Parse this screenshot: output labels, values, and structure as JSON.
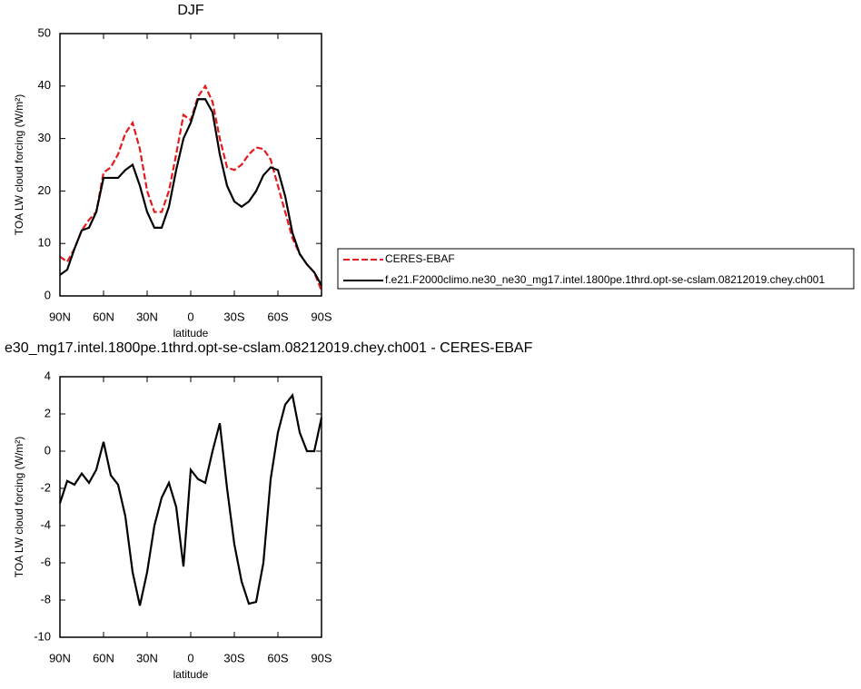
{
  "chart_data": [
    {
      "type": "line",
      "title": "DJF",
      "xlabel": "latitude",
      "ylabel": "TOA LW cloud forcing (W/m²)",
      "x": [
        90,
        85,
        80,
        75,
        70,
        65,
        60,
        55,
        50,
        45,
        40,
        35,
        30,
        25,
        20,
        15,
        10,
        5,
        0,
        -5,
        -10,
        -15,
        -20,
        -25,
        -30,
        -35,
        -40,
        -45,
        -50,
        -55,
        -60,
        -65,
        -70,
        -75,
        -80,
        -85,
        -90
      ],
      "series": [
        {
          "name": "CERES-EBAF",
          "color": "#e41a1c",
          "dash": "dashed",
          "values": [
            7.5,
            6.5,
            9,
            12.5,
            14.5,
            16,
            23.5,
            24.5,
            27,
            31,
            33,
            28,
            20,
            16,
            16,
            20,
            27,
            34.5,
            33.5,
            38,
            40,
            37,
            30,
            24.5,
            24,
            25,
            27,
            28.3,
            28,
            26,
            21,
            16,
            11,
            8,
            6,
            4.5,
            1
          ]
        },
        {
          "name": "f.e21.F2000climo.ne30_ne30_mg17.intel.1800pe.1thrd.opt-se-cslam.08212019.chey.ch001",
          "color": "#000000",
          "dash": "solid",
          "values": [
            4,
            5,
            9,
            12.5,
            13,
            16,
            22.5,
            22.5,
            22.5,
            24,
            25,
            21,
            16,
            13,
            13,
            17,
            24,
            30,
            33,
            37.5,
            37.5,
            35,
            27,
            21,
            18,
            17,
            18,
            20,
            23,
            24.5,
            24,
            19,
            12,
            8,
            6,
            4.5,
            2
          ]
        }
      ],
      "xlim": [
        90,
        -90
      ],
      "xticks": [
        {
          "value": 90,
          "label": "90N"
        },
        {
          "value": 60,
          "label": "60N"
        },
        {
          "value": 30,
          "label": "30N"
        },
        0,
        {
          "value": -30,
          "label": "30S"
        },
        {
          "value": -60,
          "label": "60S"
        },
        {
          "value": -90,
          "label": "90S"
        }
      ],
      "ylim": [
        0,
        50
      ],
      "yticks": [
        0,
        10,
        20,
        30,
        40,
        50
      ],
      "legend": "right"
    },
    {
      "type": "line",
      "title": "e30_mg17.intel.1800pe.1thrd.opt-se-cslam.08212019.chey.ch001 - CERES-EBAF",
      "xlabel": "latitude",
      "ylabel": "TOA LW cloud forcing (W/m²)",
      "x": [
        90,
        85,
        80,
        75,
        70,
        65,
        60,
        55,
        50,
        45,
        40,
        35,
        30,
        25,
        20,
        15,
        10,
        5,
        0,
        -5,
        -10,
        -15,
        -20,
        -25,
        -30,
        -35,
        -40,
        -45,
        -50,
        -55,
        -60,
        -65,
        -70,
        -75,
        -80,
        -85,
        -90
      ],
      "values": [
        -2.8,
        -1.6,
        -1.8,
        -1.2,
        -1.7,
        -1,
        0.5,
        -1.3,
        -1.8,
        -3.5,
        -6.5,
        -8.3,
        -6.5,
        -4,
        -2.5,
        -1.7,
        -3,
        -6.2,
        -1,
        -1.5,
        -1.7,
        0,
        1.5,
        -2,
        -5,
        -7,
        -8.2,
        -8.1,
        -6,
        -1.5,
        1,
        2.5,
        3,
        1,
        0,
        0,
        1.8
      ],
      "color": "#000000",
      "xlim": [
        90,
        -90
      ],
      "xticks": [
        {
          "value": 90,
          "label": "90N"
        },
        {
          "value": 60,
          "label": "60N"
        },
        {
          "value": 30,
          "label": "30N"
        },
        0,
        {
          "value": -30,
          "label": "30S"
        },
        {
          "value": -60,
          "label": "60S"
        },
        {
          "value": -90,
          "label": "90S"
        }
      ],
      "ylim": [
        -10,
        4
      ],
      "yticks": [
        -10,
        -8,
        -6,
        -4,
        -2,
        0,
        2,
        4
      ]
    }
  ]
}
